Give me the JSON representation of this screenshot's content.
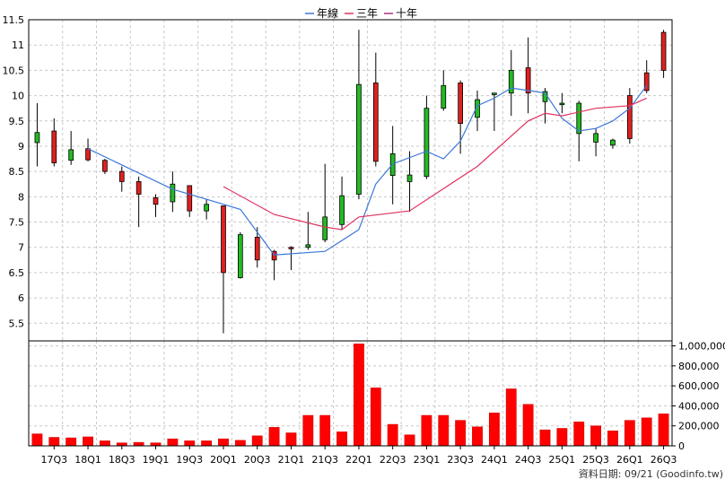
{
  "chart_data": {
    "type": "candlestick+bar",
    "legend": {
      "placement": "top-center",
      "items": [
        {
          "label": "年線",
          "color": "#3C78D8"
        },
        {
          "label": "三年",
          "color": "#E0335F"
        },
        {
          "label": "十年",
          "color": "#B03080"
        }
      ]
    },
    "price_axis": {
      "ticks": [
        "11.5",
        "11",
        "10.5",
        "10",
        "9.5",
        "9",
        "8.5",
        "8",
        "7.5",
        "7",
        "6.5",
        "6",
        "5.5"
      ],
      "ylim": [
        5.15,
        11.5
      ]
    },
    "volume_axis": {
      "ticks": [
        "1,000,000",
        "800,000",
        "600,000",
        "400,000",
        "200,000",
        "0"
      ],
      "ylim": [
        0,
        1050000
      ]
    },
    "x_labels": [
      "17Q3",
      "18Q1",
      "18Q3",
      "19Q1",
      "19Q3",
      "20Q1",
      "20Q3",
      "21Q1",
      "21Q3",
      "22Q1",
      "22Q3",
      "23Q1",
      "23Q3",
      "24Q1",
      "24Q3",
      "25Q1",
      "25Q3",
      "26Q1",
      "26Q3"
    ],
    "candles": [
      {
        "o": 9.27,
        "h": 9.85,
        "l": 8.6,
        "c": 9.07,
        "v": 120000
      },
      {
        "o": 8.67,
        "h": 9.55,
        "l": 8.6,
        "c": 9.3,
        "v": 85000
      },
      {
        "o": 8.93,
        "h": 9.3,
        "l": 8.63,
        "c": 8.72,
        "v": 80000
      },
      {
        "o": 8.73,
        "h": 9.15,
        "l": 8.7,
        "c": 8.95,
        "v": 90000
      },
      {
        "o": 8.5,
        "h": 8.75,
        "l": 8.45,
        "c": 8.72,
        "v": 50000
      },
      {
        "o": 8.3,
        "h": 8.6,
        "l": 8.1,
        "c": 8.5,
        "v": 30000
      },
      {
        "o": 8.05,
        "h": 8.4,
        "l": 7.4,
        "c": 8.3,
        "v": 35000
      },
      {
        "o": 7.85,
        "h": 8.05,
        "l": 7.6,
        "c": 7.98,
        "v": 30000
      },
      {
        "o": 8.25,
        "h": 8.5,
        "l": 7.7,
        "c": 7.9,
        "v": 70000
      },
      {
        "o": 7.72,
        "h": 8.22,
        "l": 7.6,
        "c": 8.22,
        "v": 50000
      },
      {
        "o": 7.85,
        "h": 7.95,
        "l": 7.55,
        "c": 7.72,
        "v": 50000
      },
      {
        "o": 6.5,
        "h": 7.82,
        "l": 5.3,
        "c": 7.82,
        "v": 70000
      },
      {
        "o": 7.25,
        "h": 7.3,
        "l": 6.38,
        "c": 6.4,
        "v": 55000
      },
      {
        "o": 6.75,
        "h": 7.4,
        "l": 6.6,
        "c": 7.2,
        "v": 100000
      },
      {
        "o": 6.75,
        "h": 6.95,
        "l": 6.35,
        "c": 6.92,
        "v": 185000
      },
      {
        "o": 6.97,
        "h": 7.02,
        "l": 6.55,
        "c": 7.0,
        "v": 130000
      },
      {
        "o": 7.05,
        "h": 7.7,
        "l": 6.95,
        "c": 7.0,
        "v": 305000
      },
      {
        "o": 7.6,
        "h": 8.65,
        "l": 7.1,
        "c": 7.15,
        "v": 305000
      },
      {
        "o": 8.02,
        "h": 8.4,
        "l": 7.35,
        "c": 7.45,
        "v": 140000
      },
      {
        "o": 10.22,
        "h": 11.3,
        "l": 7.95,
        "c": 8.05,
        "v": 1020000
      },
      {
        "o": 8.7,
        "h": 10.85,
        "l": 8.6,
        "c": 10.25,
        "v": 580000
      },
      {
        "o": 8.85,
        "h": 9.4,
        "l": 7.85,
        "c": 8.42,
        "v": 215000
      },
      {
        "o": 8.43,
        "h": 8.9,
        "l": 7.7,
        "c": 8.3,
        "v": 110000
      },
      {
        "o": 9.75,
        "h": 10.0,
        "l": 8.35,
        "c": 8.4,
        "v": 305000
      },
      {
        "o": 10.2,
        "h": 10.5,
        "l": 9.7,
        "c": 9.75,
        "v": 305000
      },
      {
        "o": 9.45,
        "h": 10.3,
        "l": 8.85,
        "c": 10.25,
        "v": 255000
      },
      {
        "o": 9.92,
        "h": 10.1,
        "l": 9.3,
        "c": 9.57,
        "v": 190000
      },
      {
        "o": 10.05,
        "h": 10.05,
        "l": 9.3,
        "c": 10.02,
        "v": 330000
      },
      {
        "o": 10.5,
        "h": 10.9,
        "l": 9.6,
        "c": 10.05,
        "v": 570000
      },
      {
        "o": 10.05,
        "h": 11.15,
        "l": 9.65,
        "c": 10.55,
        "v": 415000
      },
      {
        "o": 10.08,
        "h": 10.15,
        "l": 9.45,
        "c": 9.88,
        "v": 160000
      },
      {
        "o": 9.85,
        "h": 10.05,
        "l": 9.65,
        "c": 9.82,
        "v": 175000
      },
      {
        "o": 9.85,
        "h": 9.9,
        "l": 8.7,
        "c": 9.25,
        "v": 240000
      },
      {
        "o": 9.25,
        "h": 9.35,
        "l": 8.8,
        "c": 9.08,
        "v": 200000
      },
      {
        "o": 9.12,
        "h": 9.15,
        "l": 8.95,
        "c": 9.02,
        "v": 150000
      },
      {
        "o": 9.15,
        "h": 10.15,
        "l": 9.05,
        "c": 10.0,
        "v": 255000
      },
      {
        "o": 10.1,
        "h": 10.7,
        "l": 10.05,
        "c": 10.45,
        "v": 280000
      },
      {
        "o": 10.5,
        "h": 11.3,
        "l": 10.35,
        "c": 11.25,
        "v": 320000
      }
    ],
    "series": [
      {
        "name": "年線",
        "color": "#3C78D8",
        "points": [
          [
            3,
            8.95
          ],
          [
            8,
            8.15
          ],
          [
            12,
            7.75
          ],
          [
            14,
            6.85
          ],
          [
            17,
            6.92
          ],
          [
            19,
            7.35
          ],
          [
            20,
            8.25
          ],
          [
            21,
            8.65
          ],
          [
            23,
            8.9
          ],
          [
            24,
            8.75
          ],
          [
            25,
            9.1
          ],
          [
            26,
            9.8
          ],
          [
            27,
            9.95
          ],
          [
            28,
            10.15
          ],
          [
            29,
            10.1
          ],
          [
            30,
            10.05
          ],
          [
            31,
            9.55
          ],
          [
            32,
            9.3
          ],
          [
            33,
            9.35
          ],
          [
            34,
            9.5
          ],
          [
            35,
            9.75
          ],
          [
            36,
            10.2
          ]
        ]
      },
      {
        "name": "三年",
        "color": "#E0335F",
        "points": [
          [
            11,
            8.2
          ],
          [
            14,
            7.65
          ],
          [
            17,
            7.4
          ],
          [
            18,
            7.35
          ],
          [
            19,
            7.6
          ],
          [
            22,
            7.72
          ],
          [
            26,
            8.6
          ],
          [
            29,
            9.5
          ],
          [
            30,
            9.65
          ],
          [
            31,
            9.6
          ],
          [
            33,
            9.75
          ],
          [
            35,
            9.8
          ],
          [
            36,
            9.95
          ]
        ]
      },
      {
        "name": "十年",
        "color": "#B03080",
        "points": []
      }
    ]
  },
  "source_note": "資料日期: 09/21  (Goodinfo.tw)"
}
